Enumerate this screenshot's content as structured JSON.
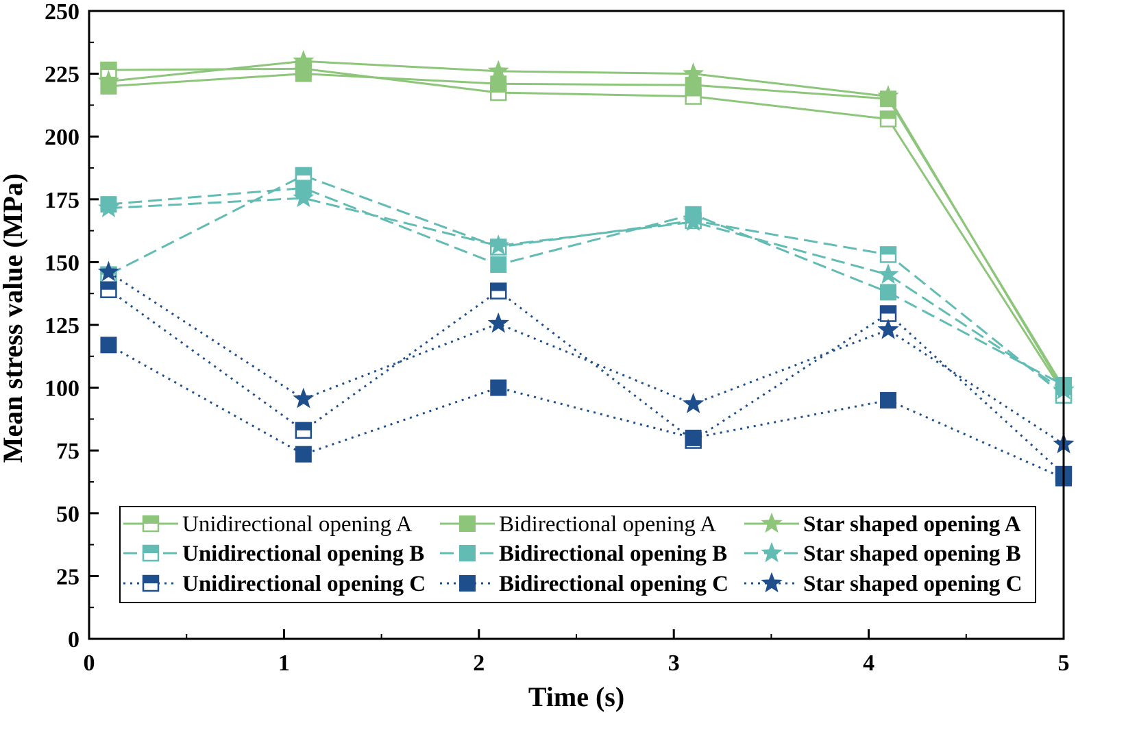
{
  "chart_data": {
    "type": "line",
    "title": "",
    "xlabel": "Time (s)",
    "ylabel": "Mean stress value (MPa)",
    "xlim": [
      0,
      5
    ],
    "ylim": [
      0,
      250
    ],
    "xticks": [
      0,
      1,
      2,
      3,
      4,
      5
    ],
    "xtick_labels": [
      "0",
      "1",
      "2",
      "3",
      "4",
      "5"
    ],
    "xminor": [
      0.5,
      1.5,
      2.5,
      3.5,
      4.5
    ],
    "yticks": [
      0,
      25,
      50,
      75,
      100,
      125,
      150,
      175,
      200,
      225,
      250
    ],
    "ytick_labels": [
      "0",
      "25",
      "50",
      "75",
      "100",
      "125",
      "150",
      "175",
      "200",
      "225",
      "250"
    ],
    "grid": false,
    "legend_position": "lower-center",
    "x": [
      0.1,
      1.1,
      2.1,
      3.1,
      4.1,
      5.0
    ],
    "series": [
      {
        "name": "Unidirectional opening A",
        "group": "A",
        "marker": "half-square",
        "color": "#8dc57a",
        "dash": "solid",
        "bold": false,
        "values": [
          226.5,
          227,
          217.5,
          216,
          207,
          98
        ]
      },
      {
        "name": "Bidirectional opening A",
        "group": "A",
        "marker": "square",
        "color": "#8dc57a",
        "dash": "solid",
        "bold": false,
        "values": [
          220,
          225,
          221,
          220.5,
          215,
          100
        ]
      },
      {
        "name": "Star shaped opening A",
        "group": "A",
        "marker": "star",
        "color": "#8dc57a",
        "dash": "solid",
        "bold": true,
        "values": [
          222,
          230,
          226,
          225,
          216,
          99
        ]
      },
      {
        "name": "Unidirectional opening B",
        "group": "B",
        "marker": "half-square",
        "color": "#62bcb3",
        "dash": "dashed",
        "bold": true,
        "values": [
          145,
          184.5,
          156,
          166.5,
          153,
          97
        ]
      },
      {
        "name": "Bidirectional opening B",
        "group": "B",
        "marker": "square",
        "color": "#62bcb3",
        "dash": "dashed",
        "bold": true,
        "values": [
          173,
          179.5,
          149,
          169,
          138,
          101
        ]
      },
      {
        "name": "Star shaped opening B",
        "group": "B",
        "marker": "star",
        "color": "#62bcb3",
        "dash": "dashed",
        "bold": true,
        "values": [
          171.5,
          175.5,
          156.5,
          166,
          145,
          99
        ]
      },
      {
        "name": "Unidirectional opening C",
        "group": "C",
        "marker": "half-square",
        "color": "#1f4e8c",
        "dash": "dotted",
        "bold": true,
        "values": [
          139,
          83,
          138.5,
          79,
          129.5,
          65.5
        ]
      },
      {
        "name": "Bidirectional opening C",
        "group": "C",
        "marker": "square",
        "color": "#1f4e8c",
        "dash": "dotted",
        "bold": true,
        "values": [
          117,
          73.5,
          100,
          80,
          95,
          64
        ]
      },
      {
        "name": "Star shaped opening C",
        "group": "C",
        "marker": "star",
        "color": "#1f4e8c",
        "dash": "dotted",
        "bold": true,
        "values": [
          146,
          95.5,
          125.5,
          93.5,
          123,
          77.5
        ]
      }
    ]
  }
}
